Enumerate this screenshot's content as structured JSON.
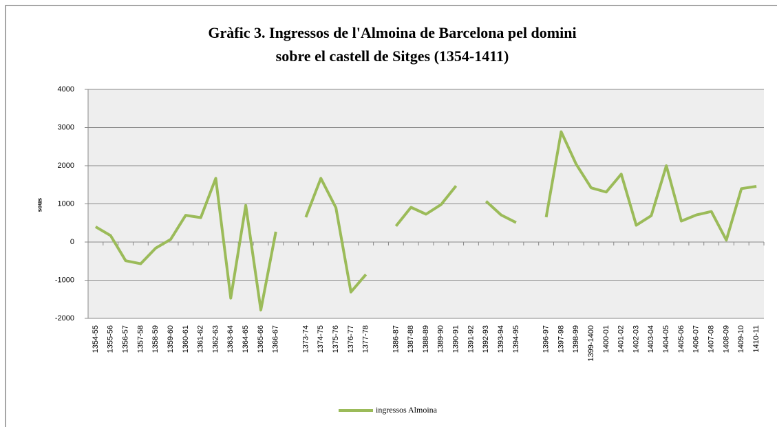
{
  "chart_data": {
    "type": "line",
    "title": [
      "Gràfic 3. Ingressos de l'Almoina de Barcelona pel domini",
      "sobre el castell de Sitges (1354-1411)"
    ],
    "y_label": "sous",
    "categories": [
      "1354-55",
      "1355-56",
      "1356-57",
      "1357-58",
      "1358-59",
      "1359-60",
      "1360-61",
      "1361-62",
      "1362-63",
      "1363-64",
      "1364-65",
      "1365-66",
      "1366-67",
      null,
      "1373-74",
      "1374-75",
      "1375-76",
      "1376-77",
      "1377-78",
      null,
      "1386-87",
      "1387-88",
      "1388-89",
      "1389-90",
      "1390-91",
      "1391-92",
      "1392-93",
      "1393-94",
      "1394-95",
      null,
      "1396-97",
      "1397-98",
      "1398-99",
      "1399-1400",
      "1400-01",
      "1401-02",
      "1402-03",
      "1403-04",
      "1404-05",
      "1405-06",
      "1406-07",
      "1407-08",
      "1408-09",
      "1409-10",
      "1410-11"
    ],
    "series": [
      {
        "name": "ingressos Almoina",
        "color": "#9bbb59",
        "values": [
          400,
          170,
          -490,
          -570,
          -160,
          70,
          700,
          640,
          1670,
          -1470,
          960,
          -1780,
          270,
          null,
          650,
          1670,
          900,
          -1310,
          -850,
          null,
          420,
          910,
          730,
          980,
          1470,
          null,
          1070,
          710,
          510,
          null,
          650,
          2890,
          2040,
          1420,
          1310,
          1780,
          440,
          690,
          2000,
          550,
          710,
          800,
          50,
          1400,
          1460
        ]
      }
    ],
    "ylim": [
      -2000,
      4000
    ],
    "yticks": [
      -2000,
      -1000,
      0,
      1000,
      2000,
      3000,
      4000
    ],
    "grid": true,
    "legend": "bottom"
  }
}
